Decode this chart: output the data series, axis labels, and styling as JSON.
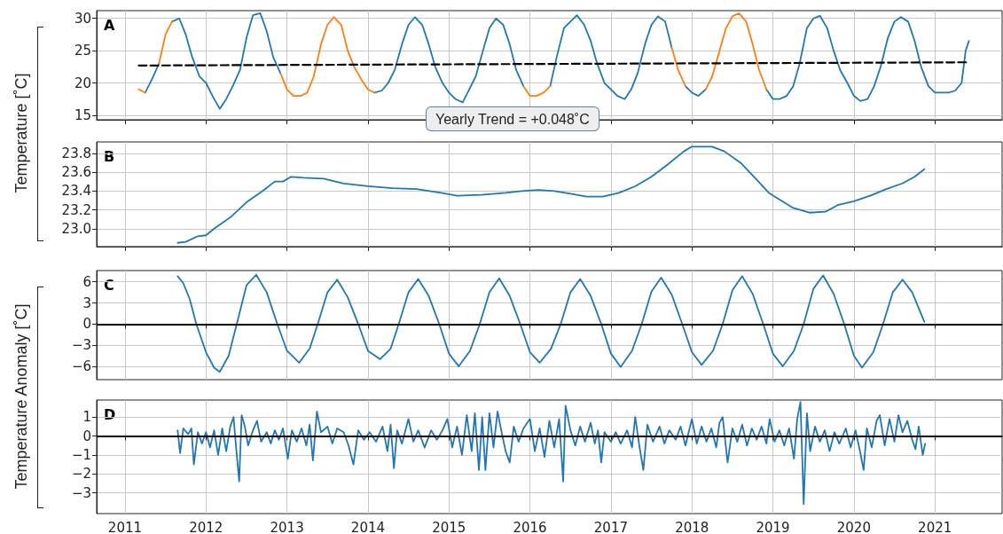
{
  "chart_data": [
    {
      "type": "line",
      "ylabel": "Temperature [˚C]",
      "annotations": [
        "A",
        "Yearly Trend = +0.048˚C"
      ],
      "x": [
        2011.17,
        2011.25,
        2011.33,
        2011.42,
        2011.5,
        2011.58,
        2011.67,
        2011.75,
        2011.83,
        2011.92,
        2012,
        2012.08,
        2012.17,
        2012.25,
        2012.33,
        2012.42,
        2012.5,
        2012.58,
        2012.67,
        2012.75,
        2012.83,
        2012.92,
        2013,
        2013.08,
        2013.17,
        2013.25,
        2013.33,
        2013.42,
        2013.5,
        2013.58,
        2013.67,
        2013.75,
        2013.83,
        2013.92,
        2014,
        2014.08,
        2014.17,
        2014.25,
        2014.33,
        2014.42,
        2014.5,
        2014.58,
        2014.67,
        2014.75,
        2014.83,
        2014.92,
        2015,
        2015.08,
        2015.17,
        2015.25,
        2015.33,
        2015.42,
        2015.5,
        2015.58,
        2015.67,
        2015.75,
        2015.83,
        2015.92,
        2016,
        2016.08,
        2016.17,
        2016.25,
        2016.33,
        2016.42,
        2016.5,
        2016.58,
        2016.67,
        2016.75,
        2016.83,
        2016.92,
        2017,
        2017.08,
        2017.17,
        2017.25,
        2017.33,
        2017.42,
        2017.5,
        2017.58,
        2017.67,
        2017.75,
        2017.83,
        2017.92,
        2018,
        2018.08,
        2018.17,
        2018.25,
        2018.33,
        2018.42,
        2018.5,
        2018.58,
        2018.67,
        2018.75,
        2018.83,
        2018.92,
        2019,
        2019.08,
        2019.17,
        2019.25,
        2019.33,
        2019.42,
        2019.5,
        2019.58,
        2019.67,
        2019.75,
        2019.83,
        2019.92,
        2020,
        2020.08,
        2020.17,
        2020.25,
        2020.33,
        2020.42,
        2020.5,
        2020.58,
        2020.67,
        2020.75,
        2020.83,
        2020.92,
        2021,
        2021.08,
        2021.17,
        2021.25,
        2021.33,
        2021.38,
        2021.42
      ],
      "series": [
        {
          "color": "#1f77b4",
          "values": [
            null,
            18.5,
            20.5,
            23,
            null,
            29.5,
            30,
            27.5,
            24,
            21,
            20,
            18,
            16,
            17.5,
            19.5,
            22,
            27,
            30.5,
            30.8,
            28,
            24,
            21.5,
            null,
            null,
            null,
            null,
            null,
            null,
            null,
            null,
            null,
            null,
            null,
            null,
            null,
            18.5,
            18.8,
            20,
            22,
            26,
            29,
            30.2,
            29,
            26,
            22.5,
            20,
            18.5,
            17.5,
            17,
            19,
            21,
            25,
            28.5,
            30,
            29,
            26,
            22,
            19.5,
            null,
            null,
            null,
            19.5,
            24,
            28.5,
            29.5,
            30.5,
            29,
            26.5,
            23,
            20,
            19,
            18,
            17.5,
            19,
            21.5,
            26,
            29,
            30.3,
            29.5,
            25.5,
            null,
            19.5,
            18.5,
            18,
            19,
            null,
            null,
            null,
            null,
            null,
            null,
            null,
            null,
            19,
            17.5,
            17.5,
            18,
            19.5,
            23,
            28.5,
            30,
            30.4,
            28.5,
            25,
            22,
            20,
            18,
            17.2,
            17.5,
            19.5,
            22.5,
            27,
            29.5,
            30.2,
            29.5,
            26.5,
            22.5,
            19.5,
            18.5,
            18.5,
            18.5,
            18.8,
            20,
            25,
            26.5
          ]
        },
        {
          "color": "#ff7f0e",
          "values": [
            19,
            18.5,
            null,
            23,
            27.5,
            29.5,
            null,
            null,
            null,
            null,
            null,
            null,
            null,
            null,
            null,
            null,
            null,
            null,
            null,
            null,
            null,
            21.5,
            19,
            18,
            18,
            18.5,
            21,
            26,
            29,
            30.2,
            29,
            25,
            22.5,
            20.5,
            19,
            18.5,
            null,
            null,
            null,
            null,
            null,
            null,
            null,
            null,
            null,
            null,
            null,
            null,
            null,
            null,
            null,
            null,
            null,
            null,
            null,
            null,
            null,
            19.5,
            18,
            18,
            18.5,
            19.5,
            null,
            null,
            null,
            null,
            null,
            null,
            null,
            null,
            null,
            null,
            null,
            null,
            null,
            null,
            null,
            null,
            null,
            25.5,
            22,
            19.5,
            null,
            null,
            19,
            21,
            24.5,
            28.5,
            30.3,
            30.8,
            29.5,
            26,
            22,
            19,
            null,
            null,
            null,
            null,
            null,
            null,
            null,
            null,
            null,
            null,
            null,
            null,
            null,
            null,
            null,
            null,
            null,
            null,
            null,
            null,
            null,
            null,
            null,
            null,
            null,
            null,
            null,
            null,
            null,
            null,
            null
          ]
        },
        {
          "type": "line",
          "color": "#000000",
          "line_style": "dashed",
          "x": [
            2011.17,
            2021.42
          ],
          "values": [
            22.7,
            23.2
          ]
        }
      ],
      "xlim": [
        2010.65,
        2021.83
      ],
      "xticks": [
        2011,
        2012,
        2013,
        2014,
        2015,
        2016,
        2017,
        2018,
        2019,
        2020,
        2021
      ],
      "ylim": [
        14.3,
        31.2
      ],
      "yticks": [
        15,
        20,
        25,
        30
      ],
      "grid": true,
      "tick_labels": "y"
    },
    {
      "type": "line",
      "annotations": [
        "B"
      ],
      "x": [
        2011.65,
        2011.75,
        2011.9,
        2012,
        2012.1,
        2012.3,
        2012.5,
        2012.7,
        2012.85,
        2012.95,
        2013.05,
        2013.2,
        2013.45,
        2013.7,
        2014,
        2014.3,
        2014.6,
        2014.9,
        2015.1,
        2015.4,
        2015.7,
        2015.9,
        2016.1,
        2016.3,
        2016.5,
        2016.7,
        2016.9,
        2017.1,
        2017.3,
        2017.5,
        2017.7,
        2017.9,
        2018,
        2018.25,
        2018.4,
        2018.6,
        2018.8,
        2018.95,
        2019.1,
        2019.25,
        2019.45,
        2019.65,
        2019.8,
        2020,
        2020.2,
        2020.4,
        2020.6,
        2020.75,
        2020.87
      ],
      "series": [
        {
          "color": "#1f77b4",
          "values": [
            22.85,
            22.86,
            22.92,
            22.93,
            23.0,
            23.12,
            23.28,
            23.4,
            23.5,
            23.5,
            23.55,
            23.54,
            23.53,
            23.48,
            23.45,
            23.43,
            23.42,
            23.38,
            23.35,
            23.36,
            23.38,
            23.4,
            23.41,
            23.4,
            23.37,
            23.34,
            23.34,
            23.38,
            23.45,
            23.55,
            23.68,
            23.82,
            23.87,
            23.87,
            23.82,
            23.7,
            23.52,
            23.38,
            23.3,
            23.22,
            23.17,
            23.18,
            23.25,
            23.29,
            23.35,
            23.42,
            23.48,
            23.55,
            23.63
          ]
        }
      ],
      "xlim": [
        2010.65,
        2021.83
      ],
      "xticks": [
        2011,
        2012,
        2013,
        2014,
        2015,
        2016,
        2017,
        2018,
        2019,
        2020,
        2021
      ],
      "ylim": [
        22.81,
        23.92
      ],
      "yticks": [
        {
          "value": 23,
          "label": "23.0"
        },
        23.2,
        23.4,
        23.6,
        23.8
      ],
      "grid": true,
      "tick_labels": "y"
    },
    {
      "type": "line",
      "ylabel": "Temperature Anomaly [˚C]",
      "annotations": [
        "C"
      ],
      "x": [
        2011.65,
        2011.72,
        2011.8,
        2011.88,
        2012,
        2012.1,
        2012.17,
        2012.28,
        2012.38,
        2012.5,
        2012.62,
        2012.75,
        2012.88,
        2013,
        2013.15,
        2013.28,
        2013.38,
        2013.5,
        2013.62,
        2013.75,
        2013.88,
        2014,
        2014.15,
        2014.28,
        2014.38,
        2014.5,
        2014.62,
        2014.75,
        2014.88,
        2015,
        2015.12,
        2015.26,
        2015.38,
        2015.5,
        2015.62,
        2015.75,
        2015.88,
        2016,
        2016.12,
        2016.26,
        2016.38,
        2016.5,
        2016.62,
        2016.75,
        2016.88,
        2017,
        2017.12,
        2017.26,
        2017.38,
        2017.5,
        2017.62,
        2017.75,
        2017.88,
        2018,
        2018.12,
        2018.26,
        2018.38,
        2018.5,
        2018.62,
        2018.75,
        2018.88,
        2019,
        2019.12,
        2019.26,
        2019.38,
        2019.5,
        2019.62,
        2019.75,
        2019.88,
        2020,
        2020.1,
        2020.24,
        2020.36,
        2020.48,
        2020.6,
        2020.72,
        2020.87
      ],
      "series": [
        {
          "color": "#1f77b4",
          "values": [
            6.8,
            5.8,
            3.5,
            0,
            -4,
            -6.2,
            -6.8,
            -4.5,
            0,
            5.5,
            7,
            4.5,
            0,
            -3.8,
            -5.5,
            -3.5,
            0,
            4.5,
            6.3,
            3.8,
            0,
            -3.8,
            -5,
            -3.5,
            0,
            4.5,
            6.4,
            4,
            0,
            -4.2,
            -6,
            -3.8,
            0,
            4.5,
            6.5,
            4,
            0,
            -4,
            -5.5,
            -3.5,
            0,
            4.5,
            6.4,
            4,
            0,
            -4.2,
            -6.1,
            -3.8,
            0,
            4.6,
            6.6,
            4.2,
            0,
            -4,
            -5.8,
            -3.8,
            0,
            4.8,
            6.8,
            4.3,
            0,
            -4.2,
            -6,
            -3.8,
            0,
            5,
            6.9,
            4.3,
            0,
            -4.5,
            -6.2,
            -4,
            0,
            4.5,
            6.3,
            4.5,
            0.3
          ]
        }
      ],
      "ref_lines": [
        {
          "axis": "y",
          "value": 0,
          "color": "#000000"
        }
      ],
      "xlim": [
        2010.65,
        2021.83
      ],
      "xticks": [
        2011,
        2012,
        2013,
        2014,
        2015,
        2016,
        2017,
        2018,
        2019,
        2020,
        2021
      ],
      "ylim": [
        -7.9,
        7.6
      ],
      "yticks": [
        {
          "value": -6,
          "label": "−6"
        },
        {
          "value": -3,
          "label": "−3"
        },
        0,
        3,
        6
      ],
      "grid": true,
      "tick_labels": "y"
    },
    {
      "type": "line",
      "annotations": [
        "D"
      ],
      "x": [
        2011.65,
        2011.68,
        2011.72,
        2011.78,
        2011.82,
        2011.85,
        2011.9,
        2011.95,
        2012,
        2012.05,
        2012.1,
        2012.15,
        2012.2,
        2012.25,
        2012.3,
        2012.34,
        2012.38,
        2012.41,
        2012.44,
        2012.48,
        2012.52,
        2012.58,
        2012.63,
        2012.68,
        2012.75,
        2012.8,
        2012.85,
        2012.9,
        2012.95,
        2013.01,
        2013.06,
        2013.12,
        2013.18,
        2013.24,
        2013.28,
        2013.32,
        2013.37,
        2013.42,
        2013.5,
        2013.56,
        2013.62,
        2013.7,
        2013.76,
        2013.82,
        2013.88,
        2013.95,
        2014.02,
        2014.1,
        2014.18,
        2014.24,
        2014.28,
        2014.32,
        2014.36,
        2014.42,
        2014.5,
        2014.56,
        2014.62,
        2014.7,
        2014.78,
        2014.85,
        2014.92,
        2014.98,
        2015.04,
        2015.1,
        2015.16,
        2015.22,
        2015.28,
        2015.32,
        2015.37,
        2015.41,
        2015.45,
        2015.5,
        2015.55,
        2015.6,
        2015.65,
        2015.7,
        2015.75,
        2015.8,
        2015.86,
        2015.92,
        2016,
        2016.06,
        2016.12,
        2016.18,
        2016.24,
        2016.3,
        2016.36,
        2016.41,
        2016.44,
        2016.5,
        2016.56,
        2016.62,
        2016.68,
        2016.75,
        2016.8,
        2016.84,
        2016.88,
        2016.92,
        2017,
        2017.06,
        2017.12,
        2017.2,
        2017.26,
        2017.3,
        2017.35,
        2017.4,
        2017.45,
        2017.52,
        2017.6,
        2017.66,
        2017.72,
        2017.8,
        2017.86,
        2017.92,
        2018,
        2018.06,
        2018.12,
        2018.18,
        2018.24,
        2018.3,
        2018.34,
        2018.38,
        2018.44,
        2018.5,
        2018.56,
        2018.62,
        2018.68,
        2018.74,
        2018.8,
        2018.86,
        2018.92,
        2018.96,
        2019.02,
        2019.08,
        2019.14,
        2019.2,
        2019.26,
        2019.3,
        2019.34,
        2019.38,
        2019.42,
        2019.46,
        2019.52,
        2019.58,
        2019.64,
        2019.7,
        2019.76,
        2019.82,
        2019.9,
        2019.96,
        2020.02,
        2020.08,
        2020.12,
        2020.16,
        2020.22,
        2020.28,
        2020.32,
        2020.38,
        2020.44,
        2020.5,
        2020.55,
        2020.6,
        2020.66,
        2020.72,
        2020.76,
        2020.8,
        2020.85,
        2020.88
      ],
      "series": [
        {
          "color": "#1f77b4",
          "values": [
            0.3,
            -0.9,
            0.4,
            0.1,
            0.4,
            -1.5,
            0.2,
            -0.4,
            0.2,
            -0.6,
            0.3,
            -1.0,
            0.4,
            -0.8,
            0.5,
            1.0,
            -1.0,
            -2.4,
            1.1,
            0.5,
            -0.5,
            0.3,
            0.8,
            -0.3,
            0.2,
            -0.4,
            0.3,
            -0.2,
            0.4,
            -1.2,
            0.3,
            -0.3,
            0.4,
            -0.5,
            0.6,
            -1.3,
            1.3,
            0.2,
            0.5,
            -0.4,
            0.4,
            0.2,
            -0.5,
            -1.5,
            0.3,
            -0.2,
            0.2,
            -0.3,
            0.5,
            -0.8,
            0.6,
            -1.7,
            0.3,
            -0.4,
            0.9,
            -0.3,
            0.3,
            -0.6,
            0.3,
            -0.2,
            0.3,
            0.9,
            -0.6,
            0.5,
            -1.0,
            1.1,
            -0.8,
            1.2,
            -1.8,
            1.0,
            -1.8,
            1.2,
            -0.6,
            1.3,
            0.2,
            -0.8,
            -1.4,
            0.5,
            -0.3,
            0.4,
            0.9,
            -0.8,
            0.4,
            -1.1,
            0.8,
            -0.6,
            0.9,
            -2.4,
            1.6,
            0.3,
            -0.5,
            0.5,
            -0.3,
            0.7,
            -0.4,
            0.3,
            -1.4,
            0.2,
            -0.3,
            0.2,
            -0.4,
            0.3,
            -0.6,
            1.0,
            -0.5,
            -1.8,
            0.6,
            -0.3,
            0.5,
            -0.4,
            0.3,
            -0.2,
            0.5,
            -0.5,
            0.9,
            -0.4,
            0.5,
            -0.3,
            0.4,
            -0.6,
            0.7,
            1.0,
            -1.4,
            0.4,
            -0.3,
            0.6,
            -0.5,
            0.4,
            -0.2,
            0.5,
            -0.4,
            0.9,
            -0.3,
            0.3,
            -0.5,
            0.4,
            -1.2,
            0.9,
            1.8,
            -3.6,
            1.2,
            -0.8,
            0.5,
            -0.3,
            0.3,
            -0.8,
            0.2,
            -0.4,
            0.4,
            -0.6,
            0.3,
            -0.9,
            -1.8,
            0.4,
            -0.6,
            0.8,
            1.1,
            -0.5,
            0.9,
            -0.3,
            1.1,
            0.2,
            0.8,
            -0.2,
            -0.7,
            0.5,
            -1.0,
            -0.4
          ]
        }
      ],
      "ref_lines": [
        {
          "axis": "y",
          "value": 0,
          "color": "#000000"
        }
      ],
      "xlim": [
        2010.65,
        2021.83
      ],
      "xticks": [
        2011,
        2012,
        2013,
        2014,
        2015,
        2016,
        2017,
        2018,
        2019,
        2020,
        2021
      ],
      "ylim": [
        -4.1,
        1.9
      ],
      "yticks": [
        {
          "value": -3,
          "label": "−3"
        },
        {
          "value": -2,
          "label": "−2"
        },
        {
          "value": -1,
          "label": "−1"
        },
        0,
        1
      ],
      "grid": true
    }
  ]
}
